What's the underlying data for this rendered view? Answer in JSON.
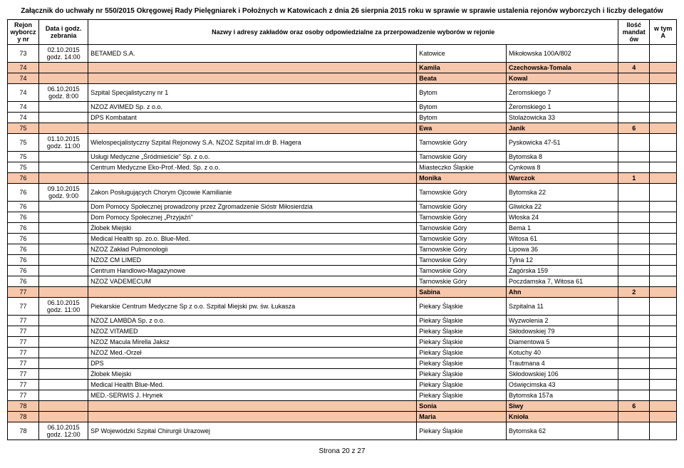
{
  "attachment_header": "Załącznik do uchwały nr 550/2015 Okręgowej Rady Pielęgniarek i Położnych w Katowicach z dnia 26 sierpnia 2015 roku w sprawie w sprawie ustalenia rejonów wyborczych i liczby delegatów",
  "columns": {
    "c1": "Rejon wyborcz y nr",
    "c2": "Data i godz. zebrania",
    "c3": "Nazwy i adresy zakładów oraz osoby odpowiedzialne za przerpowadzenie wyborów w rejonie",
    "c4_blank": "",
    "c5_blank": "",
    "c6": "Ilość mandat ów",
    "c7": "w tym A"
  },
  "footer": "Strona 20 z 27",
  "rows": [
    {
      "nr": "73",
      "date": "02.10.2015 godz. 14:00",
      "name": "BETAMED S.A.",
      "city": "Katowice",
      "addr": "Mikołowska 100A/802",
      "mand": "",
      "extra": "",
      "shaded": false
    },
    {
      "nr": "74",
      "date": "",
      "name": "",
      "city": "Kamila",
      "addr": "Czechowska-Tomala",
      "mand": "4",
      "extra": "",
      "shaded": true
    },
    {
      "nr": "74",
      "date": "",
      "name": "",
      "city": "Beata",
      "addr": "Kowal",
      "mand": "",
      "extra": "",
      "shaded": true
    },
    {
      "nr": "74",
      "date": "06.10.2015 godz. 8:00",
      "name": "Szpital Specjalistyczny nr 1",
      "city": "Bytom",
      "addr": "Żeromskiego 7",
      "mand": "",
      "extra": "",
      "shaded": false
    },
    {
      "nr": "74",
      "date": "",
      "name": "NZOZ AVIMED Sp. z o.o.",
      "city": "Bytom",
      "addr": "Żeromskiego 1",
      "mand": "",
      "extra": "",
      "shaded": false
    },
    {
      "nr": "74",
      "date": "",
      "name": "DPS Kombatant",
      "city": "Bytom",
      "addr": "Stolażowicka 33",
      "mand": "",
      "extra": "",
      "shaded": false
    },
    {
      "nr": "75",
      "date": "",
      "name": "",
      "city": "Ewa",
      "addr": "Janik",
      "mand": "6",
      "extra": "",
      "shaded": true
    },
    {
      "nr": "75",
      "date": "01.10.2015 godz. 11:00",
      "name": "Wielospecjalistyczny Szpital Rejonowy S.A. NZOZ Szpital  im.dr B. Hagera",
      "city": "Tarnowskie Góry",
      "addr": "Pyskowicka 47-51",
      "mand": "",
      "extra": "",
      "shaded": false
    },
    {
      "nr": "75",
      "date": "",
      "name": "Usługi Medyczne „Śródmieście\" Sp. z o.o.",
      "city": "Tarnowskie Góry",
      "addr": "Bytomska 8",
      "mand": "",
      "extra": "",
      "shaded": false
    },
    {
      "nr": "75",
      "date": "",
      "name": "Centrum Medyczne Eko-Prof.-Med. Sp. z o.o.",
      "city": "Miasteczko Śląskie",
      "addr": "Cynkowa 8",
      "mand": "",
      "extra": "",
      "shaded": false
    },
    {
      "nr": "76",
      "date": "",
      "name": "",
      "city": "Monika",
      "addr": "Warczok",
      "mand": "1",
      "extra": "",
      "shaded": true
    },
    {
      "nr": "76",
      "date": "09.10.2015 godz. 9:00",
      "name": "Zakon Posługujących Chorym Ojcowie Kamilianie",
      "city": "Tarnowskie Góry",
      "addr": "Bytomska 22",
      "mand": "",
      "extra": "",
      "shaded": false
    },
    {
      "nr": "76",
      "date": "",
      "name": "Dom Pomocy Społecznej prowadzony przez Zgromadzenie Sióstr Miłosierdzia",
      "city": "Tarnowskie Góry",
      "addr": "Gliwicka 22",
      "mand": "",
      "extra": "",
      "shaded": false
    },
    {
      "nr": "76",
      "date": "",
      "name": "Dom Pomocy Społecznej „Przyjaźń\"",
      "city": "Tarnowskie Góry",
      "addr": "Włoska 24",
      "mand": "",
      "extra": "",
      "shaded": false
    },
    {
      "nr": "76",
      "date": "",
      "name": "Żłobek Miejski",
      "city": "Tarnowskie Góry",
      "addr": "Bema 1",
      "mand": "",
      "extra": "",
      "shaded": false
    },
    {
      "nr": "76",
      "date": "",
      "name": "Medical Health sp. zo.o. Blue-Med.",
      "city": "Tarnowskie Góry",
      "addr": "Witosa 61",
      "mand": "",
      "extra": "",
      "shaded": false
    },
    {
      "nr": "76",
      "date": "",
      "name": "NZOZ Zakład Pulmonologii",
      "city": "Tarnowskie Góry",
      "addr": "Lipowa 36",
      "mand": "",
      "extra": "",
      "shaded": false
    },
    {
      "nr": "76",
      "date": "",
      "name": "NZOZ CM LIMED",
      "city": "Tarnowskie Góry",
      "addr": "Tylna 12",
      "mand": "",
      "extra": "",
      "shaded": false
    },
    {
      "nr": "76",
      "date": "",
      "name": "Centrum Handlowo-Magazynowe",
      "city": "Tarnowskie Góry",
      "addr": "Zagórska 159",
      "mand": "",
      "extra": "",
      "shaded": false
    },
    {
      "nr": "76",
      "date": "",
      "name": "NZOZ VADEMECUM",
      "city": "Tarnowskie Góry",
      "addr": "Poczdamska 7, Witosa 61",
      "mand": "",
      "extra": "",
      "shaded": false
    },
    {
      "nr": "77",
      "date": "",
      "name": "",
      "city": "Sabina",
      "addr": "Ahn",
      "mand": "2",
      "extra": "",
      "shaded": true
    },
    {
      "nr": "77",
      "date": "06.10.2015 godz. 11:00",
      "name": "Piekarskie Centrum Medyczne Sp z o.o. Szpital Miejski pw. św. Łukasza",
      "city": "Piekary Śląskie",
      "addr": "Szpitalna 11",
      "mand": "",
      "extra": "",
      "shaded": false
    },
    {
      "nr": "77",
      "date": "",
      "name": "NZOZ LAMBDA Sp. z o.o.",
      "city": "Piekary Śląskie",
      "addr": "Wyzwolenia 2",
      "mand": "",
      "extra": "",
      "shaded": false
    },
    {
      "nr": "77",
      "date": "",
      "name": "NZOZ VITAMED",
      "city": "Piekary Śląskie",
      "addr": "Skłodowskiej 79",
      "mand": "",
      "extra": "",
      "shaded": false
    },
    {
      "nr": "77",
      "date": "",
      "name": "NZOZ Macula Mirella Jaksz",
      "city": "Piekary Śląskie",
      "addr": "Diamentowa 5",
      "mand": "",
      "extra": "",
      "shaded": false
    },
    {
      "nr": "77",
      "date": "",
      "name": "NZOZ Med.-Orzeł",
      "city": "Piekary Śląskie",
      "addr": "Kotuchy 40",
      "mand": "",
      "extra": "",
      "shaded": false
    },
    {
      "nr": "77",
      "date": "",
      "name": "DPS",
      "city": "Piekary Śląskie",
      "addr": "Trautmana 4",
      "mand": "",
      "extra": "",
      "shaded": false
    },
    {
      "nr": "77",
      "date": "",
      "name": "Żłobek Miejski",
      "city": "Piekary Śląskie",
      "addr": "Skłodowskiej 106",
      "mand": "",
      "extra": "",
      "shaded": false
    },
    {
      "nr": "77",
      "date": "",
      "name": "Medical Health Blue-Med.",
      "city": "Piekary Śląskie",
      "addr": "Oświęcimska 43",
      "mand": "",
      "extra": "",
      "shaded": false
    },
    {
      "nr": "77",
      "date": "",
      "name": "MED.-SERWIS J. Hrynek",
      "city": "Piekary Śląskie",
      "addr": "Bytomska 157a",
      "mand": "",
      "extra": "",
      "shaded": false
    },
    {
      "nr": "78",
      "date": "",
      "name": "",
      "city": "Sonia",
      "addr": "Siwy",
      "mand": "6",
      "extra": "",
      "shaded": true
    },
    {
      "nr": "78",
      "date": "",
      "name": "",
      "city": "Maria",
      "addr": "Knioła",
      "mand": "",
      "extra": "",
      "shaded": true
    },
    {
      "nr": "78",
      "date": "06.10.2015 godz. 12:00",
      "name": "SP Wojewódzki Szpital Chirurgii Urazowej",
      "city": "Piekary Śląskie",
      "addr": "Bytomska 62",
      "mand": "",
      "extra": "",
      "shaded": false
    }
  ]
}
